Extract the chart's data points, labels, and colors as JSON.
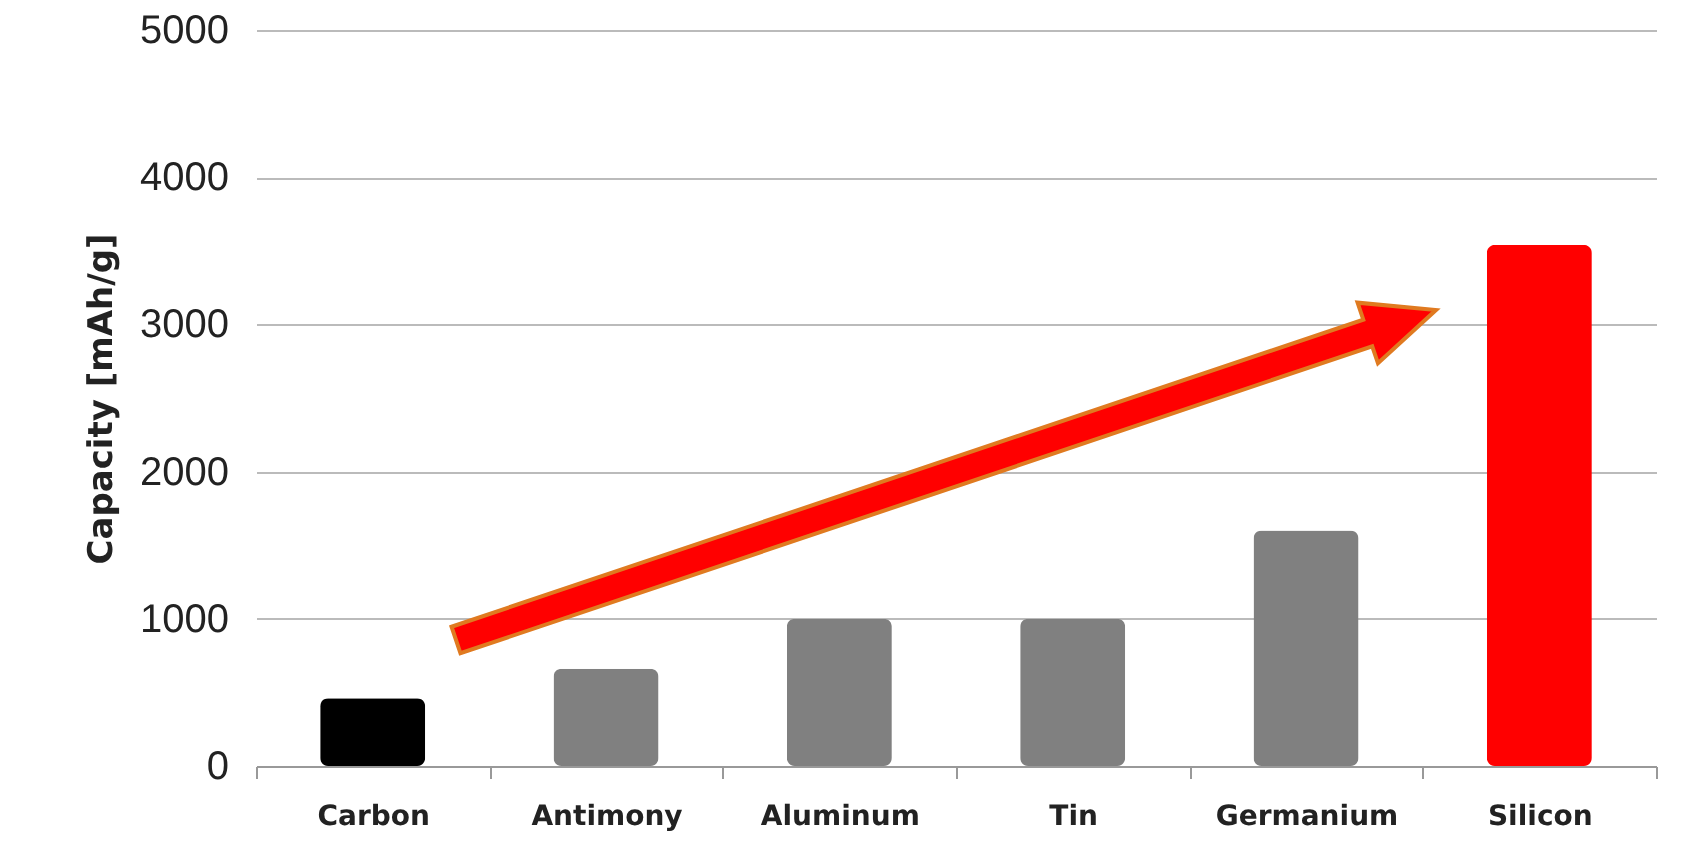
{
  "chart_data": {
    "type": "bar",
    "ylabel": "Capacity [mAh/g]",
    "categories": [
      "Carbon",
      "Antimony",
      "Aluminum",
      "Tin",
      "Germanium",
      "Silicon"
    ],
    "values": [
      460,
      660,
      1000,
      1000,
      1600,
      3540
    ],
    "colors": [
      "#000000",
      "#808080",
      "#808080",
      "#808080",
      "#808080",
      "#ff0000"
    ],
    "ylim": [
      0,
      5000
    ],
    "yticks": [
      0,
      1000,
      2000,
      3000,
      4000,
      5000
    ],
    "grid": "y"
  }
}
